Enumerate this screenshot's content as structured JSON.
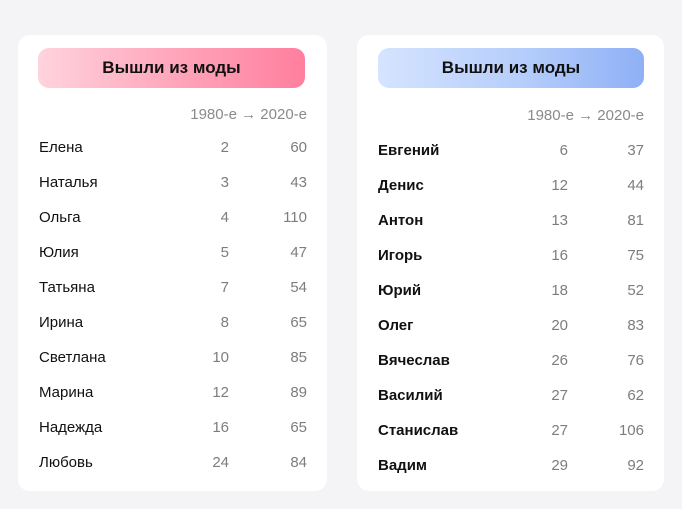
{
  "left_card": {
    "title": "Вышли из моды",
    "header": "1980-е → 2020-е",
    "rows": [
      {
        "name": "Елена",
        "v1980": "2",
        "v2020": "60"
      },
      {
        "name": "Наталья",
        "v1980": "3",
        "v2020": "43"
      },
      {
        "name": "Ольга",
        "v1980": "4",
        "v2020": "110"
      },
      {
        "name": "Юлия",
        "v1980": "5",
        "v2020": "47"
      },
      {
        "name": "Татьяна",
        "v1980": "7",
        "v2020": "54"
      },
      {
        "name": "Ирина",
        "v1980": "8",
        "v2020": "65"
      },
      {
        "name": "Светлана",
        "v1980": "10",
        "v2020": "85"
      },
      {
        "name": "Марина",
        "v1980": "12",
        "v2020": "89"
      },
      {
        "name": "Надежда",
        "v1980": "16",
        "v2020": "65"
      },
      {
        "name": "Любовь",
        "v1980": "24",
        "v2020": "84"
      }
    ]
  },
  "right_card": {
    "title": "Вышли из моды",
    "header": "1980-е → 2020-е",
    "rows": [
      {
        "name": "Евгений",
        "v1980": "6",
        "v2020": "37"
      },
      {
        "name": "Денис",
        "v1980": "12",
        "v2020": "44"
      },
      {
        "name": "Антон",
        "v1980": "13",
        "v2020": "81"
      },
      {
        "name": "Игорь",
        "v1980": "16",
        "v2020": "75"
      },
      {
        "name": "Юрий",
        "v1980": "18",
        "v2020": "52"
      },
      {
        "name": "Олег",
        "v1980": "20",
        "v2020": "83"
      },
      {
        "name": "Вячеслав",
        "v1980": "26",
        "v2020": "76"
      },
      {
        "name": "Василий",
        "v1980": "27",
        "v2020": "62"
      },
      {
        "name": "Станислав",
        "v1980": "27",
        "v2020": "106"
      },
      {
        "name": "Вадим",
        "v1980": "29",
        "v2020": "92"
      }
    ]
  },
  "colors": {
    "left_accent": "#ff7f9e",
    "right_accent": "#8fb0f6"
  }
}
